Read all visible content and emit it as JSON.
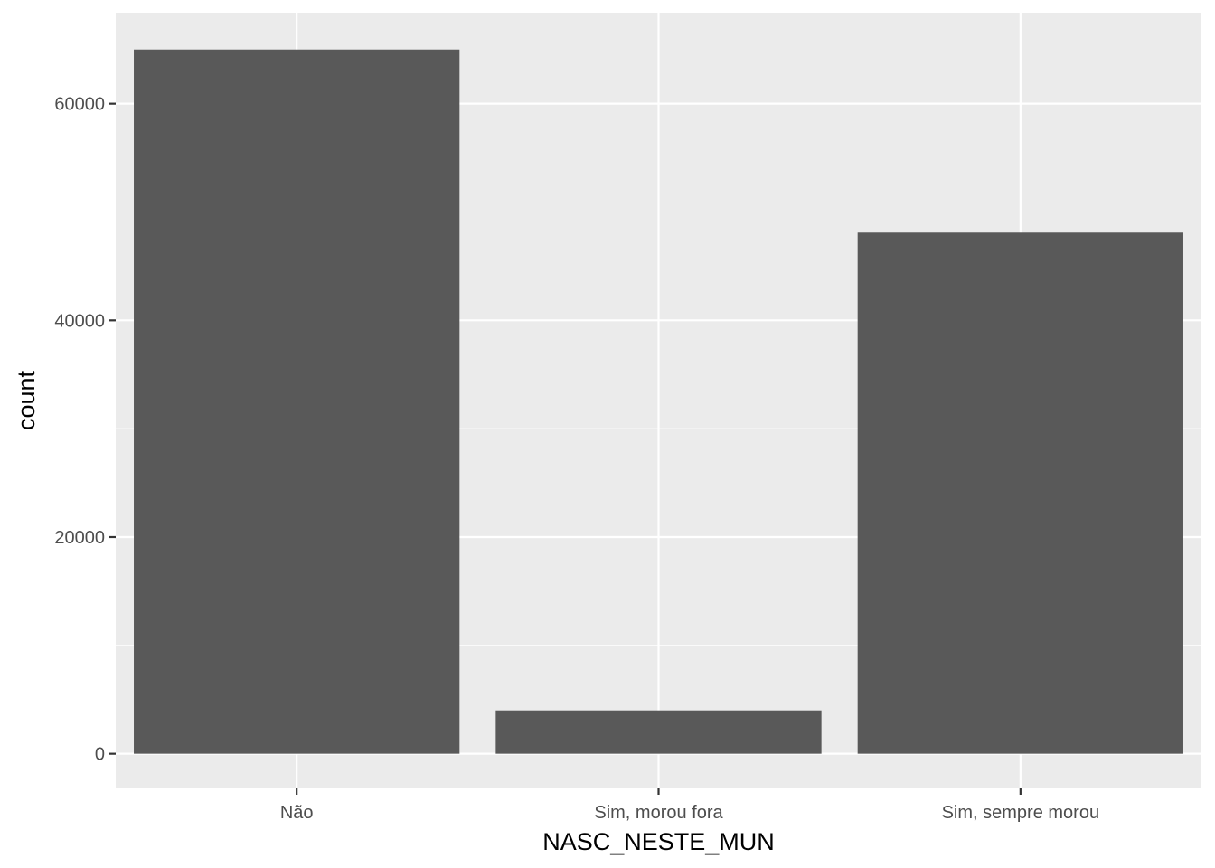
{
  "chart_data": {
    "type": "bar",
    "categories": [
      "Não",
      "Sim, morou fora",
      "Sim, sempre morou"
    ],
    "values": [
      65000,
      4000,
      48100
    ],
    "title": "",
    "xlabel": "NASC_NESTE_MUN",
    "ylabel": "count",
    "ylim": [
      -3200,
      68400
    ],
    "yticks": [
      0,
      20000,
      40000,
      60000
    ],
    "ytick_labels": [
      "0",
      "20000",
      "40000",
      "60000"
    ],
    "grid": true,
    "legend": "none",
    "colors": {
      "bar": "#595959",
      "panel": "#ebebeb",
      "grid": "#ffffff",
      "tick": "#333333"
    }
  }
}
